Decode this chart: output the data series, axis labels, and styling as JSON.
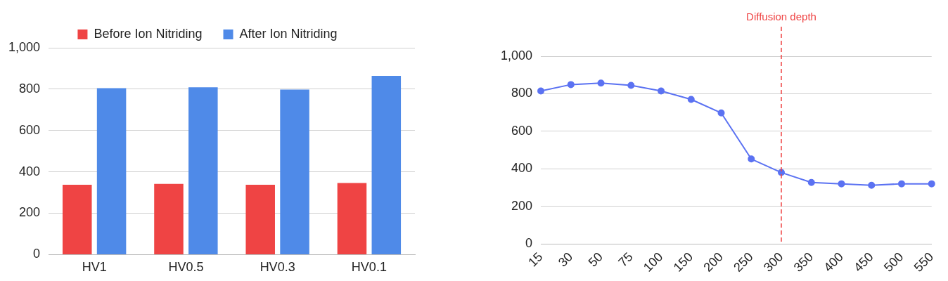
{
  "chart_data": [
    {
      "type": "bar",
      "categories": [
        "HV1",
        "HV0.5",
        "HV0.3",
        "HV0.1"
      ],
      "series": [
        {
          "name": "Before Ion Nitriding",
          "color": "#ef4444",
          "values": [
            338,
            342,
            338,
            346
          ]
        },
        {
          "name": "After Ion Nitriding",
          "color": "#4f8ae8",
          "values": [
            805,
            809,
            798,
            864
          ]
        }
      ],
      "ylim": [
        0,
        1000
      ],
      "yticks": [
        0,
        200,
        400,
        600,
        800,
        {
          "value": 1000,
          "label": "1,000"
        }
      ],
      "grid": "y",
      "legend": "top"
    },
    {
      "type": "line",
      "categories": [
        "15",
        "30",
        "50",
        "75",
        "100",
        "150",
        "200",
        "250",
        "300",
        "350",
        "400",
        "450",
        "500",
        "550"
      ],
      "series": [
        {
          "color": "#5b72f2",
          "values": [
            815,
            849,
            857,
            845,
            815,
            770,
            698,
            453,
            381,
            328,
            321,
            313,
            321,
            321
          ]
        }
      ],
      "ylim": [
        0,
        1000
      ],
      "yticks": [
        0,
        200,
        400,
        600,
        800,
        {
          "value": 1000,
          "label": "1,000"
        }
      ],
      "grid": "y",
      "marker": "circle",
      "ref_lines": [
        {
          "axis": "x",
          "value": "300",
          "label": "Diffusion depth",
          "color": "#ef4444",
          "line_style": "dashed"
        }
      ]
    }
  ]
}
